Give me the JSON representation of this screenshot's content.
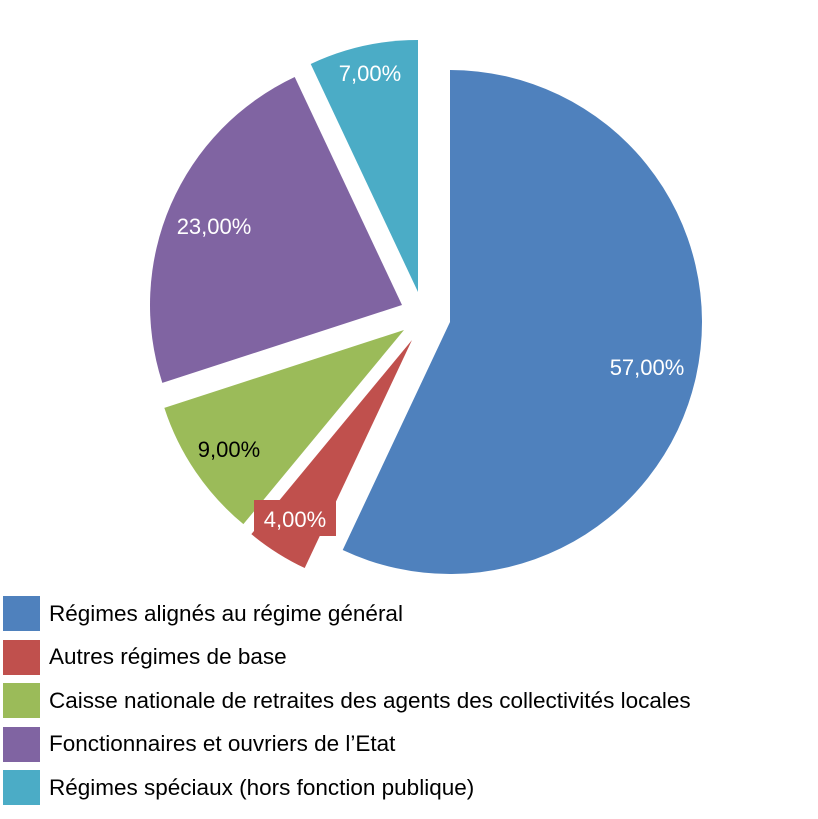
{
  "chart_data": {
    "type": "pie",
    "title": "",
    "start_angle_deg": 0,
    "direction": "clockwise",
    "legend_position": "bottom-left",
    "slices": [
      {
        "name": "Régimes alignés au régime général",
        "value": 57,
        "label": "57,00%",
        "color": "#4F81BD",
        "label_color": "#FFFFFF",
        "exploded": false
      },
      {
        "name": "Autres régimes de base",
        "value": 4,
        "label": "4,00%",
        "color": "#C0504D",
        "label_color": "#FFFFFF",
        "exploded": true
      },
      {
        "name": "Caisse nationale de retraites des agents des collectivités locales",
        "value": 9,
        "label": "9,00%",
        "color": "#9BBB59",
        "label_color": "#000000",
        "exploded": true
      },
      {
        "name": "Fonctionnaires et ouvriers de l’Etat",
        "value": 23,
        "label": "23,00%",
        "color": "#8064A2",
        "label_color": "#FFFFFF",
        "exploded": true
      },
      {
        "name": "Régimes spéciaux (hors fonction publique)",
        "value": 7,
        "label": "7,00%",
        "color": "#4BACC6",
        "label_color": "#FFFFFF",
        "exploded": true
      }
    ]
  }
}
